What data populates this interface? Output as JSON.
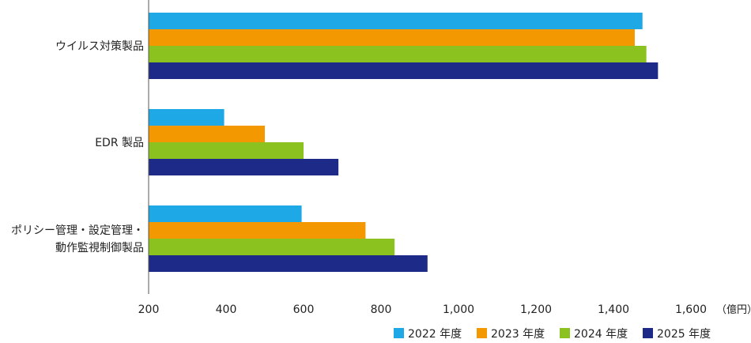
{
  "chart_data": {
    "type": "bar",
    "orientation": "horizontal",
    "title": "",
    "xlabel": "",
    "ylabel": "",
    "unit_label": "（億円）",
    "xlim": [
      200,
      1600
    ],
    "ticks": [
      200,
      400,
      600,
      800,
      1000,
      1200,
      1400,
      1600
    ],
    "tick_labels": [
      "200",
      "400",
      "600",
      "800",
      "1,000",
      "1,200",
      "1,400",
      "1,600"
    ],
    "categories": [
      {
        "lines": [
          "ウイルス対策製品"
        ]
      },
      {
        "lines": [
          "EDR 製品"
        ]
      },
      {
        "lines": [
          "ポリシー管理・設定管理・",
          "動作監視制御製品"
        ]
      }
    ],
    "series": [
      {
        "name": "2022 年度",
        "color": "#1ea8e6",
        "values": [
          1475,
          395,
          595
        ]
      },
      {
        "name": "2023 年度",
        "color": "#f39800",
        "values": [
          1455,
          500,
          760
        ]
      },
      {
        "name": "2024 年度",
        "color": "#8cc21f",
        "values": [
          1485,
          600,
          835
        ]
      },
      {
        "name": "2025 年度",
        "color": "#1e2a87",
        "values": [
          1515,
          690,
          920
        ]
      }
    ],
    "grid": false,
    "legend": "bottom-right",
    "axis_color": "#555555"
  }
}
